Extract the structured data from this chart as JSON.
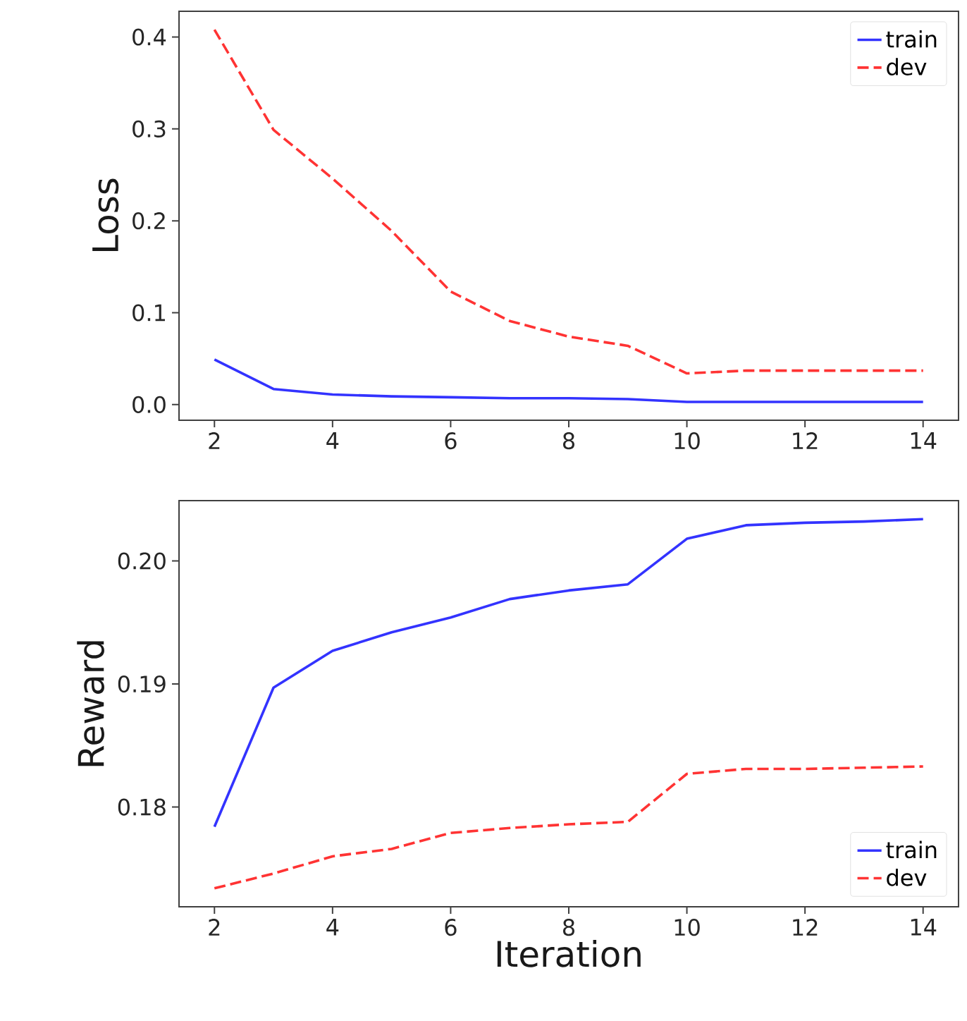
{
  "chart_data": [
    {
      "type": "line",
      "ylabel": "Loss",
      "x": [
        2,
        3,
        4,
        5,
        6,
        7,
        8,
        9,
        10,
        11,
        12,
        13,
        14
      ],
      "xlim": [
        1.4,
        14.6
      ],
      "xticks": [
        2,
        4,
        6,
        8,
        10,
        12,
        14
      ],
      "ylim": [
        -0.017,
        0.428
      ],
      "yticks": [
        {
          "value": 0,
          "label": "0.0"
        },
        0.1,
        0.2,
        0.3,
        0.4
      ],
      "legend": "top right",
      "series": [
        {
          "name": "train",
          "color": "#3333ff",
          "line_style": "solid",
          "values": [
            0.049,
            0.017,
            0.011,
            0.009,
            0.008,
            0.007,
            0.007,
            0.006,
            0.003,
            0.003,
            0.003,
            0.003,
            0.003
          ]
        },
        {
          "name": "dev",
          "color": "#ff3333",
          "line_style": "dashed",
          "values": [
            0.408,
            0.299,
            0.246,
            0.189,
            0.123,
            0.091,
            0.074,
            0.064,
            0.034,
            0.037,
            0.037,
            0.037,
            0.037
          ]
        }
      ]
    },
    {
      "type": "line",
      "xlabel": "Iteration",
      "ylabel": "Reward",
      "x": [
        2,
        3,
        4,
        5,
        6,
        7,
        8,
        9,
        10,
        11,
        12,
        13,
        14
      ],
      "xlim": [
        1.4,
        14.6
      ],
      "xticks": [
        2,
        4,
        6,
        8,
        10,
        12,
        14
      ],
      "ylim": [
        0.1719,
        0.2049
      ],
      "yticks": [
        0.18,
        0.19,
        {
          "value": 0.2,
          "label": "0.20"
        }
      ],
      "legend": "bottom right",
      "series": [
        {
          "name": "train",
          "color": "#3333ff",
          "line_style": "solid",
          "values": [
            0.1784,
            0.1897,
            0.1927,
            0.1942,
            0.1954,
            0.1969,
            0.1976,
            0.1981,
            0.2018,
            0.2029,
            0.2031,
            0.2032,
            0.2034
          ]
        },
        {
          "name": "dev",
          "color": "#ff3333",
          "line_style": "dashed",
          "values": [
            0.1734,
            0.1746,
            0.176,
            0.1766,
            0.1779,
            0.1783,
            0.1786,
            0.1788,
            0.1827,
            0.1831,
            0.1831,
            0.1832,
            0.1833
          ]
        }
      ]
    }
  ]
}
